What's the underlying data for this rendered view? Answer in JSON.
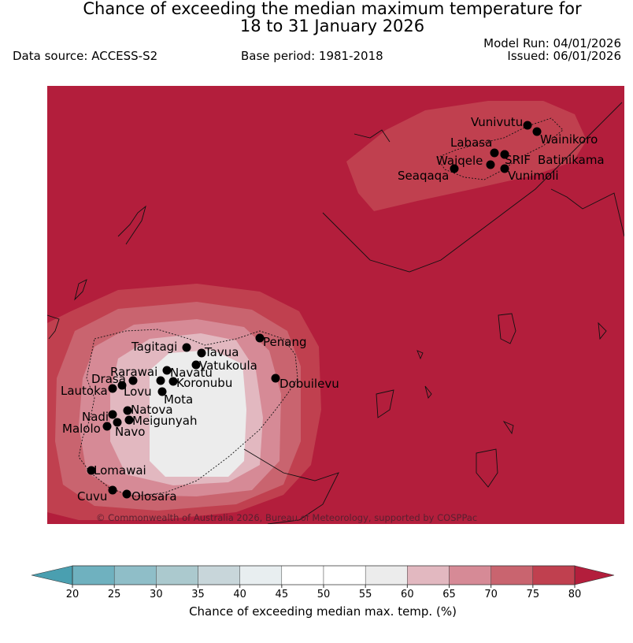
{
  "header": {
    "title_line1": "Chance of exceeding the median maximum temperature for",
    "title_line2": "18 to 31 January 2026",
    "model_run": "Model Run: 04/01/2026",
    "issued": "Issued: 06/01/2026",
    "data_source": "Data source: ACCESS-S2",
    "base_period": "Base period: 1981-2018"
  },
  "map": {
    "background_color": "#b31e3c",
    "copyright": "© Commonwealth of Australia 2026, Bureau of Meteorology, supported by COSPPac",
    "locations": [
      {
        "name": "Vunivutu"
      },
      {
        "name": "Wainikoro"
      },
      {
        "name": "Labasa"
      },
      {
        "name": "Waiqele"
      },
      {
        "name": "SRIF"
      },
      {
        "name": "Batinikama"
      },
      {
        "name": "Seaqaqa"
      },
      {
        "name": "Vunimoli"
      },
      {
        "name": "Tagitagi"
      },
      {
        "name": "Tavua"
      },
      {
        "name": "Penang"
      },
      {
        "name": "Vatukoula"
      },
      {
        "name": "Rarawai"
      },
      {
        "name": "Navatu"
      },
      {
        "name": "Drasa"
      },
      {
        "name": "Koronubu"
      },
      {
        "name": "Dobuilevu"
      },
      {
        "name": "Lautoka"
      },
      {
        "name": "Lovu"
      },
      {
        "name": "Mota"
      },
      {
        "name": "Natova"
      },
      {
        "name": "Nadi"
      },
      {
        "name": "Meigunyah"
      },
      {
        "name": "Malolo"
      },
      {
        "name": "Navo"
      },
      {
        "name": "Lomawai"
      },
      {
        "name": "Cuvu"
      },
      {
        "name": "Olosara"
      }
    ]
  },
  "colorbar": {
    "label": "Chance of exceeding median max. temp. (%)",
    "ticks": [
      "20",
      "25",
      "30",
      "35",
      "40",
      "45",
      "50",
      "55",
      "60",
      "65",
      "70",
      "75",
      "80"
    ],
    "below_color": "#4a9fb0",
    "above_color": "#b31e3c",
    "bin_colors": [
      "#6fb1bf",
      "#8fbec8",
      "#abc9ce",
      "#c8d6da",
      "#e8eef0",
      "#ffffff",
      "#ffffff",
      "#ececec",
      "#e2b8c0",
      "#d68a96",
      "#c9646f",
      "#c0404f"
    ]
  }
}
